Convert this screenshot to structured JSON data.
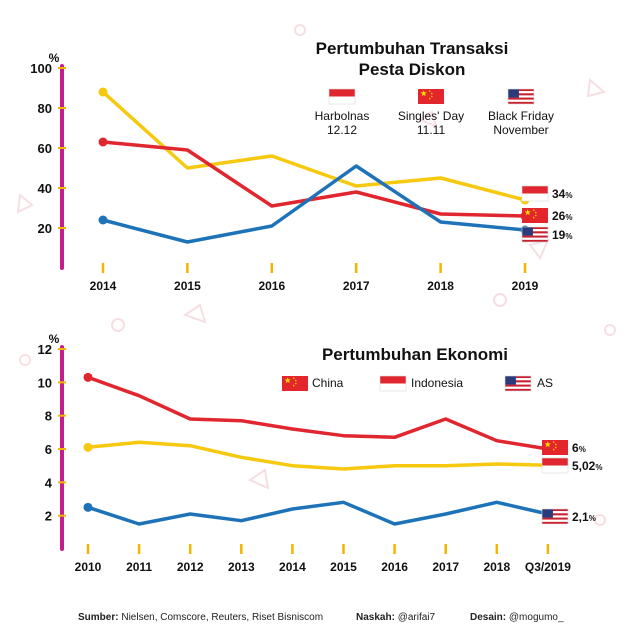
{
  "colors": {
    "red": "#e0262f",
    "yellow": "#f6c90e",
    "blue": "#1e73b8",
    "axis_y": "#c41e8c",
    "axis_x": "#f6c90e",
    "tick": "#f4b400",
    "bg_shapes": "#f6dfe2"
  },
  "chart_data": [
    {
      "type": "line",
      "title": "Pertumbuhan Transaksi\nPesta Diskon",
      "ylabel": "%",
      "xlabel": "",
      "ylim": [
        0,
        100
      ],
      "yticks": [
        20,
        40,
        60,
        80,
        100
      ],
      "categories": [
        "2014",
        "2015",
        "2016",
        "2017",
        "2018",
        "2019"
      ],
      "legend": [
        {
          "label": "Harbolnas\n12.12",
          "flag": "indonesia-flag"
        },
        {
          "label": "Singles' Day\n11.11",
          "flag": "china-flag"
        },
        {
          "label": "Black Friday\nNovember",
          "flag": "usa-flag"
        }
      ],
      "series": [
        {
          "name": "Harbolnas 12.12",
          "color": "yellow",
          "values": [
            88,
            50,
            56,
            41,
            45,
            34
          ],
          "end_label": "34",
          "end_unit": "%"
        },
        {
          "name": "Singles' Day 11.11",
          "color": "red",
          "values": [
            63,
            59,
            31,
            38,
            27,
            26
          ],
          "end_label": "26",
          "end_unit": "%"
        },
        {
          "name": "Black Friday November",
          "color": "blue",
          "values": [
            24,
            13,
            21,
            51,
            23,
            19
          ],
          "end_label": "19",
          "end_unit": "%"
        }
      ],
      "end_flags": [
        "indonesia-flag",
        "china-flag",
        "usa-flag"
      ],
      "grid": false
    },
    {
      "type": "line",
      "title": "Pertumbuhan Ekonomi",
      "ylabel": "%",
      "xlabel": "",
      "ylim": [
        0,
        12
      ],
      "yticks": [
        2,
        4,
        6,
        8,
        10,
        12
      ],
      "categories": [
        "2010",
        "2011",
        "2012",
        "2013",
        "2014",
        "2015",
        "2016",
        "2017",
        "2018",
        "Q3/2019"
      ],
      "legend": [
        {
          "label": "China",
          "flag": "china-flag"
        },
        {
          "label": "Indonesia",
          "flag": "indonesia-flag"
        },
        {
          "label": "AS",
          "flag": "usa-flag"
        }
      ],
      "series": [
        {
          "name": "China",
          "color": "red",
          "values": [
            10.3,
            9.2,
            7.8,
            7.7,
            7.2,
            6.8,
            6.7,
            7.8,
            6.5,
            6.0
          ],
          "end_label": "6",
          "end_unit": "%"
        },
        {
          "name": "Indonesia",
          "color": "yellow",
          "values": [
            6.1,
            6.4,
            6.2,
            5.5,
            5.0,
            4.8,
            5.0,
            5.0,
            5.1,
            5.02
          ],
          "end_label": "5,02",
          "end_unit": "%"
        },
        {
          "name": "AS",
          "color": "blue",
          "values": [
            2.5,
            1.5,
            2.1,
            1.7,
            2.4,
            2.8,
            1.5,
            2.1,
            2.8,
            2.1
          ],
          "end_label": "2,1",
          "end_unit": "%"
        }
      ],
      "end_flags": [
        "china-flag",
        "indonesia-flag",
        "usa-flag"
      ],
      "grid": false
    }
  ],
  "footer": {
    "source_label": "Sumber:",
    "source_value": "Nielsen, Comscore, Reuters, Riset Bisniscom",
    "script_label": "Naskah:",
    "script_value": "@arifai7",
    "design_label": "Desain:",
    "design_value": "@mogumo_"
  }
}
